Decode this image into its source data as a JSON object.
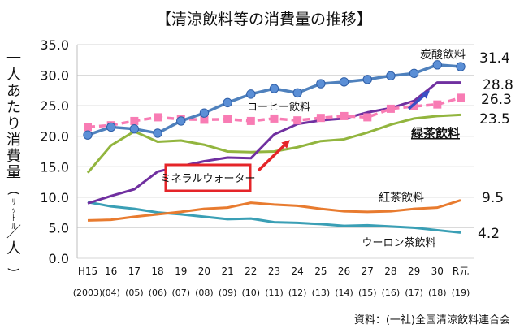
{
  "chart_data": {
    "type": "line",
    "title": "【清涼飲料等の消費量の推移】",
    "ylabel": "一人あたり消費量(ﾘｯﾄﾙ／人)",
    "ylim": [
      0,
      35
    ],
    "yticks": [
      "0.0",
      "5.0",
      "10.0",
      "15.0",
      "20.0",
      "25.0",
      "30.0",
      "35.0"
    ],
    "grid": true,
    "categories": [
      "H15",
      "16",
      "17",
      "18",
      "19",
      "20",
      "21",
      "22",
      "23",
      "24",
      "25",
      "26",
      "27",
      "28",
      "29",
      "30",
      "R元"
    ],
    "categories_years": [
      "(2003)",
      "(04)",
      "(05)",
      "(06)",
      "(07)",
      "(08)",
      "(09)",
      "(10)",
      "(11)",
      "(12)",
      "(13)",
      "(14)",
      "(15)",
      "(16)",
      "(17)",
      "(18)",
      "(19)"
    ],
    "series": [
      {
        "name": "炭酸飲料",
        "end_label": "31.4",
        "color": "#4f81bd",
        "style": "solid-markers",
        "values": [
          20.2,
          21.5,
          21.2,
          20.5,
          22.5,
          23.8,
          25.5,
          26.9,
          27.8,
          27.1,
          28.6,
          28.9,
          29.3,
          29.9,
          30.3,
          31.7,
          31.4
        ]
      },
      {
        "name": "ミネラルウォーター",
        "end_label": "28.8",
        "color": "#7030a0",
        "style": "solid",
        "values": [
          9.0,
          10.2,
          11.3,
          14.2,
          15.1,
          15.9,
          16.5,
          16.4,
          20.3,
          22.0,
          22.6,
          22.9,
          23.9,
          24.6,
          25.8,
          28.8,
          28.8
        ]
      },
      {
        "name": "コーヒー飲料",
        "end_label": "26.3",
        "color": "#f87cb4",
        "style": "dashed-markers",
        "values": [
          21.5,
          21.8,
          22.5,
          23.1,
          22.8,
          22.7,
          22.8,
          22.5,
          22.9,
          22.6,
          23.0,
          23.3,
          23.1,
          24.5,
          24.9,
          25.2,
          26.3
        ]
      },
      {
        "name": "緑茶飲料",
        "end_label": "23.5",
        "color": "#92b53e",
        "style": "solid",
        "values": [
          14.0,
          18.5,
          20.8,
          19.1,
          19.3,
          18.6,
          17.5,
          17.4,
          17.5,
          18.2,
          19.2,
          19.5,
          20.6,
          21.9,
          22.9,
          23.3,
          23.5
        ]
      },
      {
        "name": "紅茶飲料",
        "end_label": "9.5",
        "color": "#e87b2f",
        "style": "solid",
        "values": [
          6.2,
          6.3,
          6.8,
          7.2,
          7.6,
          8.1,
          8.3,
          9.1,
          8.8,
          8.6,
          8.1,
          7.7,
          7.6,
          7.7,
          8.1,
          8.3,
          9.5
        ]
      },
      {
        "name": "ウーロン茶飲料",
        "end_label": "4.2",
        "color": "#3a9fb5",
        "style": "solid",
        "values": [
          9.2,
          8.5,
          8.1,
          7.5,
          7.2,
          6.8,
          6.4,
          6.5,
          5.9,
          5.8,
          5.6,
          5.3,
          5.4,
          5.2,
          5.0,
          4.6,
          4.2
        ]
      }
    ],
    "source": "資料：(一社)全国清涼飲料連合会"
  }
}
